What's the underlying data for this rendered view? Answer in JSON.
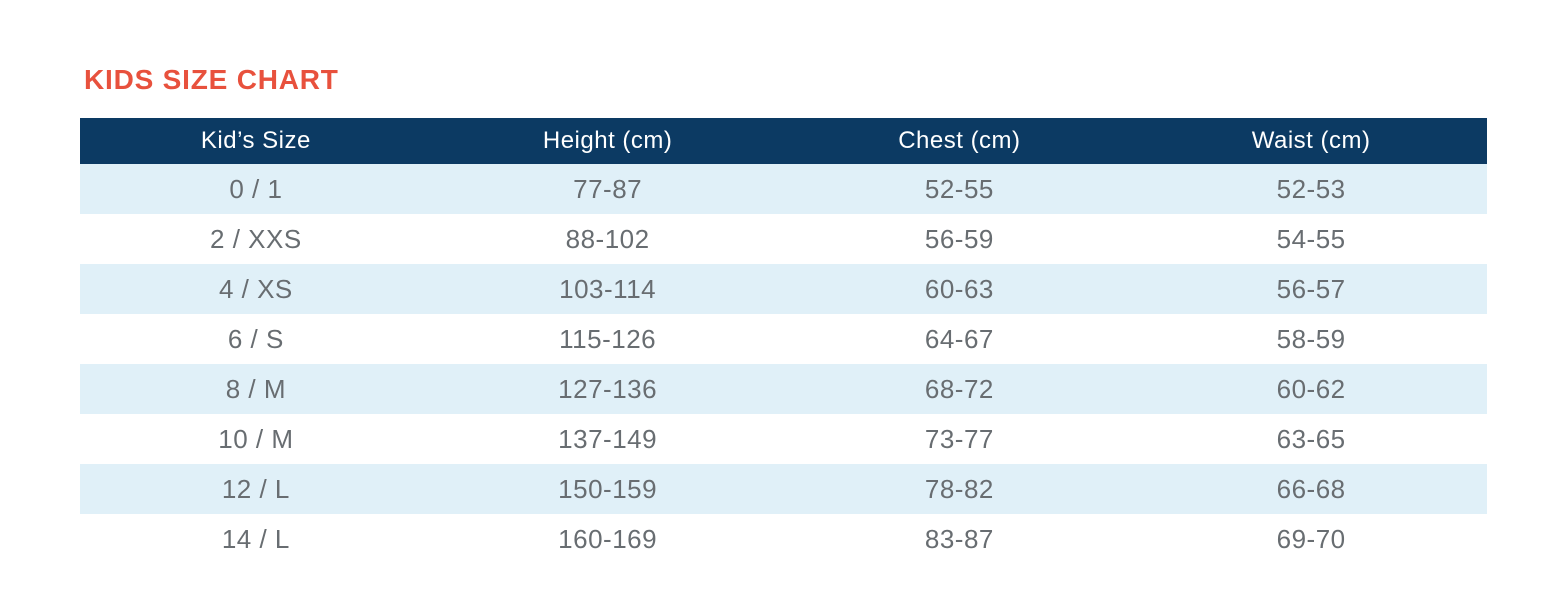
{
  "page": {
    "title": "KIDS SIZE CHART"
  },
  "colors": {
    "page-bg": "#ffffff",
    "title": "#e8513d",
    "header-bg": "#0c3a63",
    "header-text": "#ffffff",
    "row-alt-bg": "#e0f0f8",
    "row-bg": "#ffffff",
    "body-text": "#686d71"
  },
  "table": {
    "columns": [
      "Kid’s Size",
      "Height (cm)",
      "Chest (cm)",
      "Waist (cm)"
    ],
    "rows": [
      [
        "0 / 1",
        "77-87",
        "52-55",
        "52-53"
      ],
      [
        "2 / XXS",
        "88-102",
        "56-59",
        "54-55"
      ],
      [
        "4 / XS",
        "103-114",
        "60-63",
        "56-57"
      ],
      [
        "6 / S",
        "115-126",
        "64-67",
        "58-59"
      ],
      [
        "8 / M",
        "127-136",
        "68-72",
        "60-62"
      ],
      [
        "10 / M",
        "137-149",
        "73-77",
        "63-65"
      ],
      [
        "12 / L",
        "150-159",
        "78-82",
        "66-68"
      ],
      [
        "14 / L",
        "160-169",
        "83-87",
        "69-70"
      ]
    ]
  }
}
